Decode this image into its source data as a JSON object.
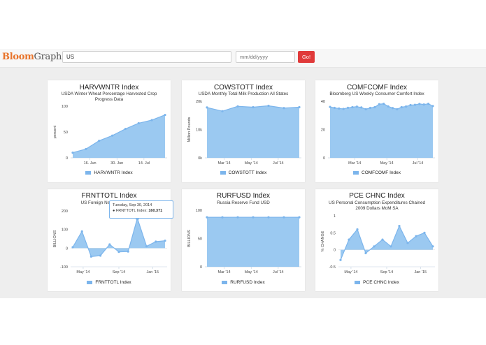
{
  "header": {
    "logo_part1": "Bloom",
    "logo_part2": "Graphs",
    "search_value": "US",
    "date_placeholder": "mm/dd/yyyy",
    "go_label": "Go!"
  },
  "colors": {
    "series": "#7cb5ec",
    "area": "#90c3f0",
    "go_button": "#e03a3a",
    "logo_accent": "#e8732a"
  },
  "tooltip": {
    "date": "Tuesday, Sep 30, 2014",
    "series": "FRNTTOTL Index",
    "value": "160.371"
  },
  "charts": [
    {
      "title": "HARVWNTR Index",
      "subtitle": "USDA Winter Wheat Percentage Harvested Crop Progress Data",
      "legend": "HARVWNTR Index",
      "ylabel": "percent",
      "yticks": [
        "100",
        "50",
        "0"
      ],
      "xticks": [
        "16. Jun",
        "30. Jun",
        "14. Jul"
      ]
    },
    {
      "title": "COWSTOTT Index",
      "subtitle": "USDA Monthly Total Milk Production All States",
      "legend": "COWSTOTT Index",
      "ylabel": "Million Pounds",
      "yticks": [
        "20k",
        "10k",
        "0k"
      ],
      "xticks": [
        "Mar '14",
        "May '14",
        "Jul '14"
      ]
    },
    {
      "title": "COMFCOMF Index",
      "subtitle": "Bloomberg US Weekly Consumer Comfort Index",
      "legend": "COMFCOMF Index",
      "ylabel": "",
      "yticks": [
        "40",
        "20",
        "0"
      ],
      "xticks": [
        "Mar '14",
        "May '14",
        "Jul '14"
      ]
    },
    {
      "title": "FRNTTOTL Index",
      "subtitle": "US Foreign Net Transactions",
      "legend": "FRNTTOTL Index",
      "ylabel": "BILLIONS",
      "yticks": [
        "200",
        "100",
        "0",
        "-100"
      ],
      "xticks": [
        "May '14",
        "Sep '14",
        "Jan '15"
      ]
    },
    {
      "title": "RURFUSD Index",
      "subtitle": "Russia Reserve Fund USD",
      "legend": "RURFUSD Index",
      "ylabel": "BILLIONS",
      "yticks": [
        "100",
        "50",
        "0"
      ],
      "xticks": [
        "Mar '14",
        "May '14",
        "Jul '14"
      ]
    },
    {
      "title": "PCE CHNC Index",
      "subtitle": "US Personal Consumption Expenditures Chained 2009 Dollars MoM SA",
      "legend": "PCE CHNC Index",
      "ylabel": "% CHANGE",
      "yticks": [
        "1",
        "0.5",
        "0",
        "-0.5"
      ],
      "xticks": [
        "May '14",
        "Sep '14",
        "Jan '15"
      ]
    }
  ],
  "chart_data": [
    {
      "type": "area",
      "title": "HARVWNTR Index",
      "subtitle": "USDA Winter Wheat Percentage Harvested Crop Progress Data",
      "ylabel": "percent",
      "ylim": [
        0,
        100
      ],
      "series": [
        {
          "name": "HARVWNTR Index",
          "values": [
            10,
            17,
            33,
            43,
            56,
            67,
            73,
            83
          ]
        }
      ]
    },
    {
      "type": "area",
      "title": "COWSTOTT Index",
      "subtitle": "USDA Monthly Total Milk Production All States",
      "ylabel": "Million Pounds",
      "ylim": [
        0,
        20000
      ],
      "series": [
        {
          "name": "COWSTOTT Index",
          "values": [
            17800,
            16500,
            18200,
            17900,
            18400,
            17600,
            17900
          ]
        }
      ]
    },
    {
      "type": "area",
      "title": "COMFCOMF Index",
      "subtitle": "Bloomberg US Weekly Consumer Comfort Index",
      "ylim": [
        0,
        40
      ],
      "series": [
        {
          "name": "COMFCOMF Index",
          "values": [
            36,
            35.3,
            34.9,
            34.6,
            35.4,
            35.8,
            36.2,
            35.6,
            34.4,
            35.3,
            35.8,
            37.9,
            38.2,
            36.4,
            35.2,
            34.4,
            35.8,
            36.3,
            37.3,
            37.5,
            38.1,
            37.7,
            38.2,
            36.6
          ]
        }
      ]
    },
    {
      "type": "area",
      "title": "FRNTTOTL Index",
      "subtitle": "US Foreign Net Transactions",
      "ylabel": "BILLIONS",
      "ylim": [
        -100,
        200
      ],
      "series": [
        {
          "name": "FRNTTOTL Index",
          "values": [
            5,
            90,
            -45,
            -40,
            20,
            -20,
            -18,
            160.371,
            10,
            35,
            40
          ]
        }
      ]
    },
    {
      "type": "area",
      "title": "RURFUSD Index",
      "subtitle": "Russia Reserve Fund USD",
      "ylabel": "BILLIONS",
      "ylim": [
        0,
        100
      ],
      "series": [
        {
          "name": "RURFUSD Index",
          "values": [
            87.5,
            87.5,
            87.6,
            87.6,
            87.6,
            87.6,
            87.5
          ]
        }
      ]
    },
    {
      "type": "area",
      "title": "PCE CHNC Index",
      "subtitle": "US Personal Consumption Expenditures Chained 2009 Dollars MoM SA",
      "ylabel": "% CHANGE",
      "ylim": [
        -0.5,
        1
      ],
      "series": [
        {
          "name": "PCE CHNC Index",
          "values": [
            -0.3,
            0.3,
            0.6,
            -0.1,
            0.1,
            0.3,
            0.1,
            0.7,
            0.2,
            0.4,
            0.5,
            0.1
          ]
        }
      ]
    }
  ]
}
